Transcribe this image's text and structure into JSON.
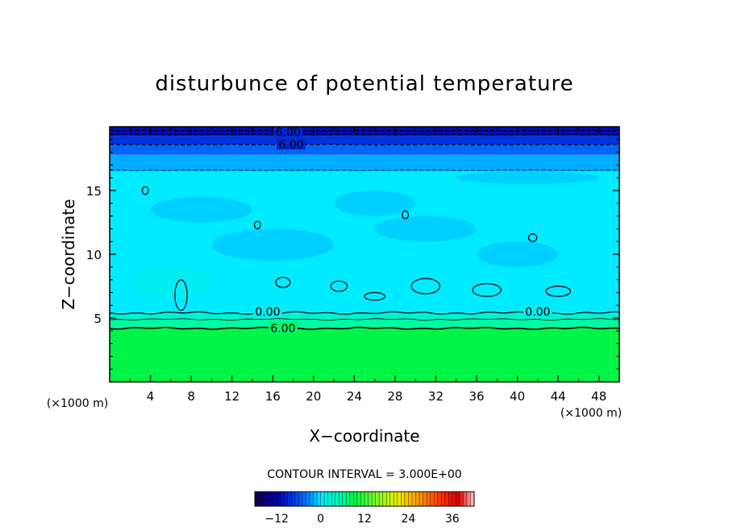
{
  "chart_data": {
    "type": "heatmap",
    "title": "disturbunce of potential temperature",
    "xlabel": "X−coordinate",
    "ylabel": "Z−coordinate",
    "x_unit": "(×1000 m)",
    "z_unit": "(×1000 m)",
    "xlim": [
      0,
      50
    ],
    "ylim": [
      0,
      20
    ],
    "x_ticks": [
      4,
      8,
      12,
      16,
      20,
      24,
      28,
      32,
      36,
      40,
      44,
      48
    ],
    "y_ticks": [
      5,
      10,
      15
    ],
    "contour_interval_text": "CONTOUR INTERVAL = 3.000E+00",
    "contour_labels": [
      "6.00",
      "6.00",
      "0.00",
      "0.00",
      "6.00"
    ],
    "colorbar": {
      "range": [
        -18,
        42
      ],
      "ticks": [
        "−12",
        "0",
        "12",
        "24",
        "36"
      ]
    },
    "layers": [
      {
        "z_bottom": 0.0,
        "z_top": 4.2,
        "value": 9
      },
      {
        "z_bottom": 4.2,
        "z_top": 4.9,
        "value": 6
      },
      {
        "z_bottom": 4.9,
        "z_top": 5.4,
        "value": 3
      },
      {
        "z_bottom": 5.4,
        "z_top": 16.5,
        "value": 0
      },
      {
        "z_bottom": 16.5,
        "z_top": 17.8,
        "value": -2
      },
      {
        "z_bottom": 17.8,
        "z_top": 18.6,
        "value": -5
      },
      {
        "z_bottom": 18.6,
        "z_top": 19.3,
        "value": -8
      },
      {
        "z_bottom": 19.3,
        "z_top": 20.0,
        "value": -11
      }
    ],
    "patches": [
      {
        "x": [
          4,
          14
        ],
        "z": [
          12.5,
          14.5
        ],
        "value": -1
      },
      {
        "x": [
          22,
          30
        ],
        "z": [
          13,
          15
        ],
        "value": -1
      },
      {
        "x": [
          34,
          48
        ],
        "z": [
          15.5,
          16.5
        ],
        "value": -1
      },
      {
        "x": [
          10,
          22
        ],
        "z": [
          9.5,
          12
        ],
        "value": -1
      },
      {
        "x": [
          26,
          36
        ],
        "z": [
          11,
          13
        ],
        "value": -1
      },
      {
        "x": [
          36,
          44
        ],
        "z": [
          9,
          11
        ],
        "value": -1
      },
      {
        "x": [
          2,
          10
        ],
        "z": [
          6.5,
          9
        ],
        "value": 1
      }
    ]
  }
}
